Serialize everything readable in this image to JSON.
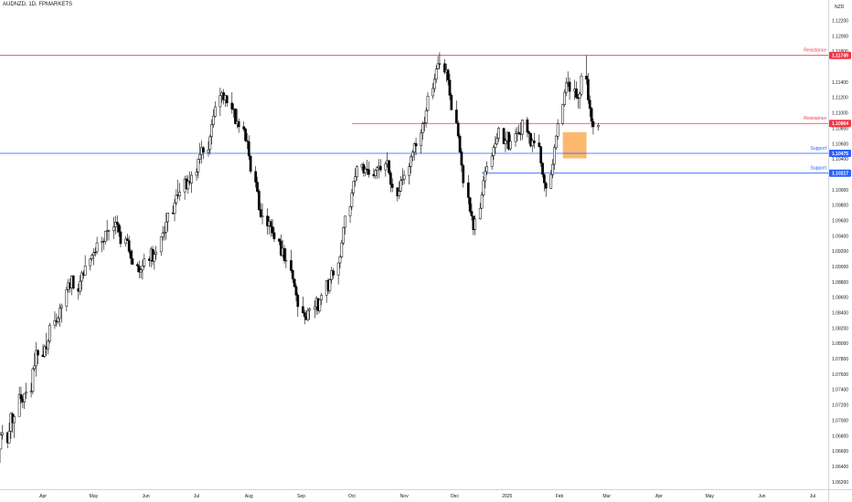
{
  "header": {
    "symbol": "AUDNZD, 1D, FPMARKETS"
  },
  "axis": {
    "currency": "NZD"
  },
  "colors": {
    "resistance": "#f23645",
    "support": "#2962ff",
    "zone": "#f9a13c",
    "candle": "#000000",
    "axis_text": "#131722",
    "border": "#d1d4dc"
  },
  "chart_data": {
    "type": "candlestick",
    "y_ticks": [
      1.122,
      1.12,
      1.118,
      1.114,
      1.112,
      1.11,
      1.108,
      1.106,
      1.104,
      1.102,
      1.1,
      1.098,
      1.096,
      1.094,
      1.092,
      1.09,
      1.088,
      1.086,
      1.084,
      1.082,
      1.08,
      1.078,
      1.076,
      1.074,
      1.072,
      1.07,
      1.068,
      1.066,
      1.064,
      1.062
    ],
    "x_ticks": [
      {
        "label": "Apr",
        "date": "2024-04-01"
      },
      {
        "label": "May",
        "date": "2024-05-01"
      },
      {
        "label": "Jun",
        "date": "2024-06-01"
      },
      {
        "label": "Jul",
        "date": "2024-07-01"
      },
      {
        "label": "Aug",
        "date": "2024-08-01"
      },
      {
        "label": "Sep",
        "date": "2024-09-01"
      },
      {
        "label": "Oct",
        "date": "2024-10-01"
      },
      {
        "label": "Nov",
        "date": "2024-11-01"
      },
      {
        "label": "Dec",
        "date": "2024-12-01"
      },
      {
        "label": "2025",
        "date": "2025-01-01"
      },
      {
        "label": "Feb",
        "date": "2025-02-01"
      },
      {
        "label": "Mar",
        "date": "2025-03-01"
      },
      {
        "label": "Apr",
        "date": "2025-04-01"
      },
      {
        "label": "May",
        "date": "2025-05-01"
      },
      {
        "label": "Jun",
        "date": "2025-06-01"
      },
      {
        "label": "Jul",
        "date": "2025-07-01"
      }
    ],
    "levels": [
      {
        "name": "Resistance",
        "value": 1.11749,
        "value_label": "1.11749",
        "start": "2024-03-01",
        "color": "#f23645"
      },
      {
        "name": "Resistance",
        "value": 1.10864,
        "value_label": "1.10864",
        "start": "2024-10-01",
        "color": "#f23645"
      },
      {
        "name": "Support",
        "value": 1.10475,
        "value_label": "1.10475",
        "start": "2024-03-01",
        "color": "#2962ff"
      },
      {
        "name": "Support",
        "value": 1.10217,
        "value_label": "1.10217",
        "start": "2024-12-17",
        "color": "#2962ff"
      }
    ],
    "zone": {
      "start": "2025-02-03",
      "end": "2025-02-17",
      "low": 1.1041,
      "high": 1.1075
    },
    "candles_text": "2024-03-01,1.06555,1.0664,1.0625,1.0643;2024-03-04,1.06432,1.0651,1.0643,1.0651;2024-03-05,1.0651,1.0658,1.0645,1.0645;2024-03-06,1.06451,1.0663,1.0645,1.0663;2024-03-07,1.06628,1.0685,1.0663,1.0681;2024-03-08,1.06812,1.0694,1.0675,1.0684;2024-03-11,1.06843,1.0684,1.0664,1.0671;2024-03-12,1.06707,1.0697,1.067,1.0686;2024-03-13,1.06861,1.0711,1.0676,1.0709;2024-03-14,1.07087,1.0711,1.0684,1.0697;2024-03-15,1.0697,1.0708,1.0677,1.0705;2024-03-18,1.07052,1.0744,1.0705,1.0734;2024-03-19,1.07338,1.0744,1.0722,1.0728;2024-03-20,1.07277,1.0732,1.0716,1.0724;2024-03-21,1.07242,1.0735,1.0715,1.0735;2024-03-22,1.07353,1.0749,1.0728,1.0737;2024-03-25,1.0737,1.0749,1.073,1.0738;2024-03-26,1.07378,1.0769,1.0734,1.0767;2024-03-27,1.07674,1.0788,1.0764,1.0771;2024-03-28,1.07708,1.0802,1.0757,1.0791;2024-03-29,1.07911,1.0793,1.0773,1.0785;2024-04-01,1.07851,1.0799,1.0783,1.0783;2024-04-02,1.07835,1.0799,1.0781,1.0796;2024-04-03,1.0796,1.0814,1.0784,1.0793;2024-04-04,1.07931,1.0806,1.0786,1.0803;2024-04-05,1.08033,1.0827,1.08,1.0824;2024-04-08,1.08241,1.0842,1.0819,1.083;2024-04-09,1.08295,1.0839,1.0822,1.0828;2024-04-10,1.08284,1.0836,1.0825,1.0833;2024-04-11,1.08326,1.0852,1.0822,1.0846;2024-04-12,1.08463,1.0852,1.0827,1.0849;2024-04-15,1.08486,1.0874,1.0842,1.087;2024-04-16,1.08703,1.0884,1.0866,1.0879;2024-04-17,1.08791,1.0885,1.0866,1.0872;2024-04-18,1.08723,1.0889,1.0863,1.0888;2024-04-19,1.08882,1.0889,1.087,1.0872;2024-04-22,1.08716,1.0878,1.0857,1.0868;2024-04-23,1.08675,1.0889,1.0863,1.0881;2024-04-24,1.08813,1.0895,1.0869,1.0892;2024-04-25,1.08919,1.0895,1.0884,1.0889;2024-04-26,1.08889,1.0915,1.0888,1.0901;2024-04-29,1.09012,1.0911,1.0895,1.091;2024-04-30,1.09103,1.0917,1.0907,1.0915;2024-05-01,1.09148,1.0924,1.0902,1.0918;2024-05-02,1.09183,1.0925,1.0913,1.0919;2024-05-03,1.09193,1.0939,1.0916,1.0931;2024-05-06,1.09313,1.0939,1.0919,1.0933;2024-05-07,1.09331,1.0937,1.0922,1.0933;2024-05-08,1.09328,1.0946,1.0929,1.0946;2024-05-09,1.09459,1.0961,1.0934,1.0947;2024-05-10,1.09468,1.0948,1.0934,1.0947;2024-05-13,1.09467,1.0965,1.0936,1.0952;2024-05-14,1.09519,1.0966,1.0942,1.0958;2024-05-15,1.09581,1.0967,1.0944,1.0955;2024-05-16,1.09549,1.0957,1.0939,1.0945;2024-05-17,1.09454,1.0953,1.0925,1.093;2024-05-20,1.09301,1.094,1.0926,1.0936;2024-05-21,1.09363,1.0943,1.0934,1.0934;2024-05-22,1.09339,1.094,1.0917,1.092;2024-05-23,1.09203,1.0923,1.0903,1.0911;2024-05-24,1.09107,1.0922,1.0903,1.0903;2024-05-27,1.09029,1.0906,1.0893,1.0901;2024-05-28,1.09008,1.0908,1.0885,1.0893;2024-05-29,1.0893,1.0898,1.0885,1.0896;2024-05-30,1.08957,1.0909,1.0883,1.0901;2024-05-31,1.09009,1.0917,1.0898,1.091;2024-06-03,1.091,1.0913,1.09,1.0908;2024-06-04,1.09084,1.0926,1.0899,1.0923;2024-06-05,1.09228,1.0927,1.0902,1.0907;2024-06-06,1.09071,1.0922,1.0896,1.0916;2024-06-07,1.09161,1.0927,1.0909,1.0919;2024-06-10,1.09193,1.0939,1.0914,1.0939;2024-06-11,1.09387,1.0953,1.0934,1.0944;2024-06-12,1.09437,1.0953,1.0934,1.0945;2024-06-13,1.09448,1.097,1.0935,1.0958;2024-06-14,1.09585,1.097,1.0946,1.097;2024-06-17,1.09701,1.098,1.0968,1.0969;2024-06-18,1.09692,1.0988,1.0959,1.0983;2024-06-19,1.09832,1.1001,1.098,1.0993;2024-06-20,1.09934,1.1013,1.0988,1.0992;2024-06-21,1.09919,1.1009,1.0986,1.0997;2024-06-24,1.09974,1.1018,1.0987,1.1014;2024-06-25,1.10142,1.1019,1.1001,1.1001;2024-06-26,1.10013,1.1019,1.0995,1.1011;2024-06-27,1.1011,1.1024,1.1006,1.1009;2024-06-28,1.10088,1.1024,1.0996,1.1019;2024-07-01,1.1019,1.1028,1.1012,1.1023;2024-07-02,1.10234,1.1041,1.1015,1.104;2024-07-03,1.10398,1.1061,1.1034,1.1046;2024-07-04,1.10461,1.1064,1.1034,1.1055;2024-07-05,1.10549,1.1057,1.104,1.1049;2024-07-08,1.10488,1.1063,1.1043,1.1052;2024-07-09,1.10524,1.1072,1.1046,1.1069;2024-07-10,1.10693,1.1092,1.1059,1.1085;2024-07-11,1.10849,1.1105,1.1081,1.1096;2024-07-12,1.10956,1.1115,1.1094,1.1108;2024-07-15,1.11081,1.1133,1.1096,1.1123;2024-07-16,1.11227,1.1129,1.1113,1.1126;2024-07-17,1.11265,1.1131,1.1111,1.1117;2024-07-18,1.11165,1.1124,1.1108,1.1123;2024-07-19,1.11226,1.1123,1.1108,1.1113;2024-07-22,1.1113,1.1127,1.1099,1.1105;2024-07-23,1.11046,1.1112,1.1094,1.1105;2024-07-24,1.11054,1.1106,1.1085,1.1086;2024-07-25,1.10858,1.1105,1.108,1.1089;2024-07-26,1.10889,1.1093,1.1074,1.1082;2024-07-29,1.10822,1.1089,1.1076,1.1079;2024-07-30,1.10793,1.1081,1.1062,1.1064;2024-07-31,1.10639,1.1074,1.1053,1.1063;2024-08-01,1.10628,1.1071,1.1039,1.1044;2024-08-02,1.10438,1.1046,1.1021,1.1024;2024-08-05,1.10239,1.1031,1.1003,1.101;2024-08-06,1.101,1.1017,1.0996,1.0998;2024-08-07,1.09983,1.1001,1.0973,1.0974;2024-08-08,1.09743,1.0983,1.0963,1.0965;2024-08-09,1.09646,1.0982,1.0955,1.0966;2024-08-12,1.09659,1.0976,1.0942,1.0953;2024-08-13,1.09532,1.0966,1.0942,1.0959;2024-08-14,1.09588,1.0962,1.0939,1.0952;2024-08-15,1.0952,1.0962,1.0939,1.0944;2024-08-16,1.09442,1.0951,1.0932,1.0936;2024-08-19,1.09361,1.0937,1.0928,1.0933;2024-08-20,1.09335,1.0942,1.0913,1.0915;2024-08-21,1.09149,1.0935,1.0912,1.0924;2024-08-22,1.09236,1.0928,1.0904,1.0908;2024-08-23,1.0908,1.0924,1.0898,1.0908;2024-08-26,1.0908,1.0922,1.0892,1.0895;2024-08-27,1.08954,1.0896,1.0879,1.0884;2024-08-28,1.08837,1.0885,1.0873,1.0874;2024-08-29,1.08742,1.0878,1.0855,1.0863;2024-08-30,1.08629,1.0866,1.0835,1.0848;2024-09-02,1.08481,1.0861,1.0839,1.084;2024-09-03,1.08402,1.0844,1.0825,1.0835;2024-09-04,1.08345,1.0843,1.0831,1.0831;2024-09-05,1.08312,1.0847,1.0829,1.0843;2024-09-06,1.08432,1.0847,1.0831,1.0845;2024-09-09,1.08446,1.0856,1.0833,1.0848;2024-09-10,1.08478,1.0862,1.0837,1.0859;2024-09-11,1.08587,1.0859,1.0838,1.0843;2024-09-12,1.08426,1.0858,1.084,1.0857;2024-09-13,1.08568,1.0866,1.085,1.0863;2024-09-16,1.08631,1.0882,1.0853,1.0882;2024-09-17,1.08823,1.0885,1.0865,1.0869;2024-09-18,1.08687,1.0885,1.0865,1.0883;2024-09-19,1.08832,1.09,1.0878,1.0895;2024-09-20,1.08947,1.0898,1.0884,1.0889;2024-09-23,1.08891,1.0905,1.0877,1.0905;2024-09-24,1.0905,1.0915,1.0898,1.0913;2024-09-25,1.09127,1.0935,1.0911,1.0931;2024-09-26,1.09308,1.0952,1.0928,1.0951;2024-09-27,1.09513,1.0966,1.0942,1.0966;2024-09-30,1.09664,1.0979,1.0957,1.0978;2024-10-01,1.09781,1.1001,1.0974,1.0996;2024-10-02,1.09961,1.1011,1.0992,1.1011;2024-10-03,1.10114,1.1028,1.1004,1.1017;2024-10-04,1.10169,1.1032,1.1012,1.103;2024-10-07,1.10296,1.1035,1.1025,1.1033;2024-10-08,1.1033,1.1036,1.1017,1.1022;2024-10-09,1.10224,1.1031,1.1018,1.1027;2024-10-10,1.10272,1.1039,1.1019,1.1026;2024-10-11,1.10264,1.1037,1.1016,1.102;2024-10-14,1.10201,1.1028,1.1015,1.1018;2024-10-15,1.10182,1.1027,1.1014,1.1025;2024-10-16,1.10254,1.1031,1.1014,1.1029;2024-10-17,1.10288,1.104,1.1015,1.1031;2024-10-18,1.10306,1.104,1.1023,1.1026;2024-10-21,1.10259,1.1037,1.1017,1.1034;2024-10-22,1.10337,1.1049,1.1029,1.1038;2024-10-23,1.10381,1.1039,1.1019,1.1022;2024-10-24,1.10219,1.1025,1.0997,1.1007;2024-10-25,1.10073,1.1015,1.0997,1.1003;2024-10-28,1.10029,1.1003,1.0985,1.0992;2024-10-29,1.09923,1.1011,1.0988,1.0998;2024-10-30,1.09985,1.1018,1.0997,1.1012;2024-10-31,1.10125,1.1028,1.1006,1.1014;2024-11-01,1.10141,1.1025,1.1007,1.1019;2024-11-04,1.10185,1.1035,1.1007,1.103;2024-11-05,1.10305,1.1046,1.1021,1.1043;2024-11-06,1.10428,1.1052,1.1037,1.1049;2024-11-07,1.10489,1.1062,1.1038,1.106;2024-11-08,1.10603,1.1068,1.1045,1.1057;2024-11-11,1.10574,1.1079,1.1047,1.1074;2024-11-12,1.1074,1.1089,1.1065,1.1086;2024-11-13,1.10861,1.1095,1.1076,1.1087;2024-11-14,1.10871,1.1107,1.1081,1.1103;2024-11-15,1.11033,1.1127,1.1102,1.1122;2024-11-18,1.11223,1.1139,1.1118,1.1132;2024-11-19,1.11317,1.1151,1.1127,1.1144;2024-11-20,1.11438,1.1162,1.1139,1.1157;2024-11-21,1.11574,1.1174,1.1157,1.1164;2024-11-22,1.11641,1.1179,1.1157,1.1164;2024-11-25,1.11642,1.117,1.115,1.1153;2024-11-26,1.11532,1.1164,1.114,1.1156;2024-11-27,1.11557,1.1158,1.1136,1.1143;2024-11-28,1.11427,1.1151,1.1117,1.1123;2024-11-29,1.11231,1.1126,1.1104,1.1104;2024-12-02,1.1104,1.1116,1.1086,1.1087;2024-12-03,1.10867,1.109,1.1067,1.107;2024-12-04,1.10698,1.1073,1.1048,1.1049;2024-12-05,1.10495,1.1054,1.1023,1.1032;2024-12-06,1.10315,1.1034,1.1003,1.1009;2024-12-09,1.10092,1.1019,1.0981,1.099;2024-12-10,1.09897,1.0991,1.0969,1.0972;2024-12-11,1.0972,1.0982,1.096,1.0966;2024-12-12,1.09656,1.0966,1.0941,1.0948;2024-12-13,1.09484,1.0967,1.0941,1.0962;2024-12-16,1.09623,1.0983,1.0961,1.0976;2024-12-17,1.09761,1.0997,1.0975,1.0993;2024-12-18,1.09932,1.1018,1.0991,1.1012;2024-12-19,1.10116,1.103,1.1002,1.1024;2024-12-20,1.10236,1.1037,1.1019,1.103;2024-12-23,1.10304,1.1048,1.1026,1.1044;2024-12-24,1.10444,1.1058,1.1039,1.1055;2024-12-25,1.10548,1.107,1.1047,1.106;2024-12-26,1.10596,1.1074,1.1058,1.1067;2024-12-27,1.10671,1.1082,1.1062,1.108;2024-12-30,1.108,1.1081,1.1059,1.106;2024-12-31,1.10599,1.1067,1.1049,1.1064;2025-01-01,1.10637,1.1075,1.1053,1.1075;2025-01-02,1.1075,1.1075,1.1051,1.1053;2025-01-03,1.10535,1.1072,1.1051,1.1063;2025-01-06,1.10627,1.108,1.1056,1.1073;2025-01-07,1.10732,1.1082,1.1063,1.1075;2025-01-08,1.10747,1.1085,1.1071,1.1073;2025-01-09,1.10728,1.1088,1.1064,1.1072;2025-01-10,1.10723,1.1091,1.1065,1.1091;2025-01-13,1.10913,1.1095,1.1068,1.1075;2025-01-14,1.10753,1.1077,1.106,1.1073;2025-01-15,1.10733,1.1074,1.1055,1.1057;2025-01-16,1.10574,1.1067,1.1049,1.1064;2025-01-17,1.10637,1.1074,1.1054,1.1061;2025-01-20,1.1061,1.1072,1.1055,1.1056;2025-01-21,1.10562,1.1057,1.103,1.1035;2025-01-22,1.10347,1.1036,1.1016,1.102;2025-01-23,1.10196,1.1022,1.0998,1.1009;2025-01-24,1.10087,1.1011,1.0991,1.1002;2025-01-27,1.10019,1.1026,1.1001,1.102;2025-01-28,1.10199,1.104,1.1015,1.1033;2025-01-29,1.10332,1.1059,1.1026,1.1055;2025-01-30,1.10547,1.1071,1.1052,1.107;2025-01-31,1.10697,1.1092,1.1065,1.1086;2025-02-03,1.10862,1.1112,1.1084,1.1111;2025-02-04,1.11108,1.1131,1.1108,1.1127;2025-02-05,1.11268,1.1146,1.1122,1.1139;2025-02-06,1.11387,1.1154,1.1134,1.114;2025-02-07,1.11402,1.1146,1.1117,1.1128;2025-02-10,1.11283,1.1143,1.1117,1.1131;2025-02-11,1.11314,1.1141,1.1118,1.112;2025-02-12,1.11196,1.1125,1.1106,1.1119;2025-02-13,1.11194,1.1128,1.1105,1.1125;2025-02-14,1.11245,1.1152,1.1122,1.1148;2025-02-17,1.11481,1.1175,1.1137,1.1144;2025-02-18,1.11437,1.1152,1.1112,1.1117;2025-02-19,1.11167,1.1123,1.1095,1.1106;2025-02-20,1.1106,1.1108,1.1081,1.1089;2025-02-21,1.1089,1.1093,1.1072,1.1082;2025-02-24,1.1082,1.1087,1.1077,1.1084"
  }
}
